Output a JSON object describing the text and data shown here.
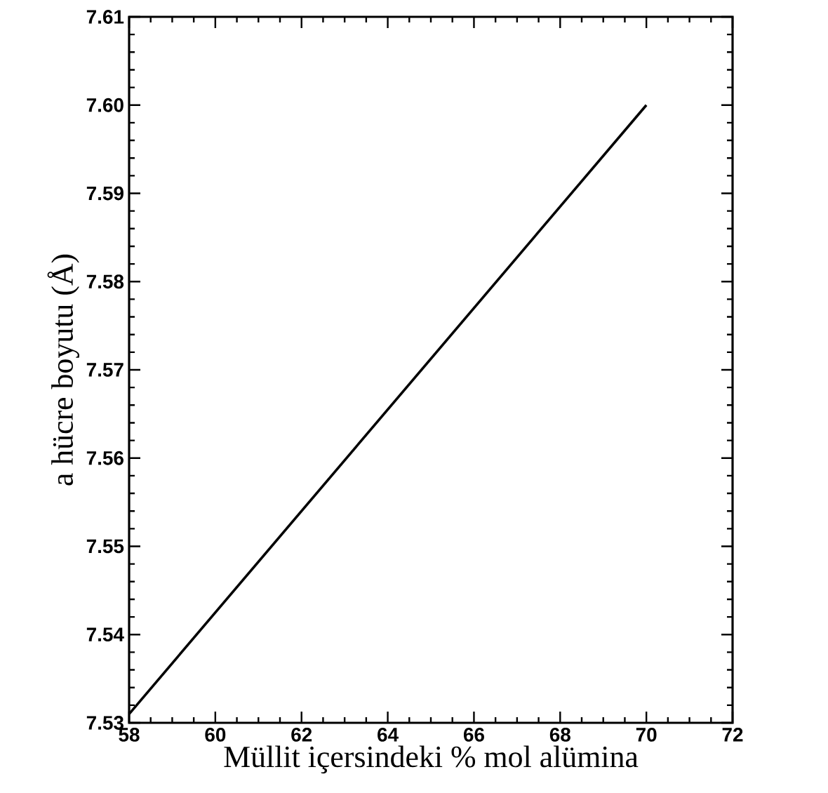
{
  "chart_data": {
    "type": "line",
    "xlabel": "Müllit içersindeki % mol alümina",
    "ylabel": "a hücre boyutu (Å)",
    "x": [
      58,
      70
    ],
    "values": [
      7.531,
      7.6
    ],
    "color": "#000000",
    "line_style": "solid",
    "xlim": [
      58,
      72
    ],
    "ylim": [
      7.53,
      7.61
    ],
    "xticks": [
      58,
      60,
      62,
      64,
      66,
      68,
      70,
      72
    ],
    "yticks": [
      7.53,
      7.54,
      7.55,
      7.56,
      7.57,
      7.58,
      7.59,
      {
        "value": 7.6,
        "label": "7.60"
      },
      7.61
    ]
  }
}
